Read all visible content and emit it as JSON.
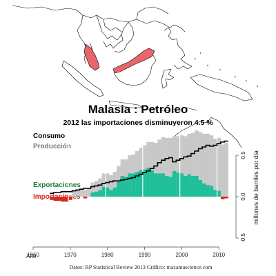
{
  "title": "Malasia :  Petróleo",
  "subtitle": "2012 las importaciones disminuyeron 4.5 %",
  "source": "Datos: BP Statistical Review 2013   Gráfico: mazamascience.com",
  "colors": {
    "consumo": "#000000",
    "produccion": "#c8c8c8",
    "exportaciones": "#1fbf99",
    "importaciones": "#d42b1e",
    "highlight_country": "#e8656a",
    "map_outline": "#000000"
  },
  "map": {
    "highlight": "Malasia"
  },
  "chart_data": {
    "type": "area",
    "xlabel": "Año",
    "ylabel": "millones de barriles por dia",
    "xlim": [
      1960,
      2012
    ],
    "ylim": [
      -0.5,
      0.75
    ],
    "x_ticks": [
      1960,
      1970,
      1980,
      1990,
      2000,
      2010
    ],
    "y_ticks": [
      "-0.5",
      "0.0",
      "0.5"
    ],
    "legend": {
      "consumo": "Consumo",
      "produccion": "Producción",
      "exportaciones": "Exportaciones",
      "importaciones": "Importaciones"
    },
    "years": [
      1965,
      1966,
      1967,
      1968,
      1969,
      1970,
      1971,
      1972,
      1973,
      1974,
      1975,
      1976,
      1977,
      1978,
      1979,
      1980,
      1981,
      1982,
      1983,
      1984,
      1985,
      1986,
      1987,
      1988,
      1989,
      1990,
      1991,
      1992,
      1993,
      1994,
      1995,
      1996,
      1997,
      1998,
      1999,
      2000,
      2001,
      2002,
      2003,
      2004,
      2005,
      2006,
      2007,
      2008,
      2009,
      2010,
      2011,
      2012
    ],
    "series": [
      {
        "name": "Producción",
        "key": "produccion",
        "values": [
          0.0,
          0.0,
          0.0,
          0.0,
          0.0,
          0.02,
          0.07,
          0.09,
          0.09,
          0.08,
          0.1,
          0.17,
          0.19,
          0.22,
          0.28,
          0.28,
          0.26,
          0.3,
          0.37,
          0.45,
          0.45,
          0.5,
          0.51,
          0.55,
          0.59,
          0.62,
          0.66,
          0.66,
          0.65,
          0.69,
          0.72,
          0.71,
          0.71,
          0.73,
          0.73,
          0.74,
          0.73,
          0.76,
          0.77,
          0.8,
          0.78,
          0.76,
          0.76,
          0.74,
          0.7,
          0.71,
          0.63,
          0.65
        ]
      },
      {
        "name": "Consumo",
        "key": "consumo",
        "values": [
          0.04,
          0.05,
          0.05,
          0.06,
          0.06,
          0.06,
          0.07,
          0.08,
          0.09,
          0.1,
          0.1,
          0.12,
          0.13,
          0.14,
          0.16,
          0.17,
          0.18,
          0.19,
          0.19,
          0.2,
          0.21,
          0.22,
          0.23,
          0.25,
          0.27,
          0.29,
          0.31,
          0.34,
          0.37,
          0.41,
          0.44,
          0.46,
          0.47,
          0.42,
          0.44,
          0.46,
          0.48,
          0.49,
          0.52,
          0.55,
          0.58,
          0.6,
          0.62,
          0.61,
          0.62,
          0.64,
          0.66,
          0.67
        ]
      }
    ],
    "import_export_note": "Exportaciones = Producción - Consumo cuando es positivo; Importaciones cuando es negativo"
  }
}
